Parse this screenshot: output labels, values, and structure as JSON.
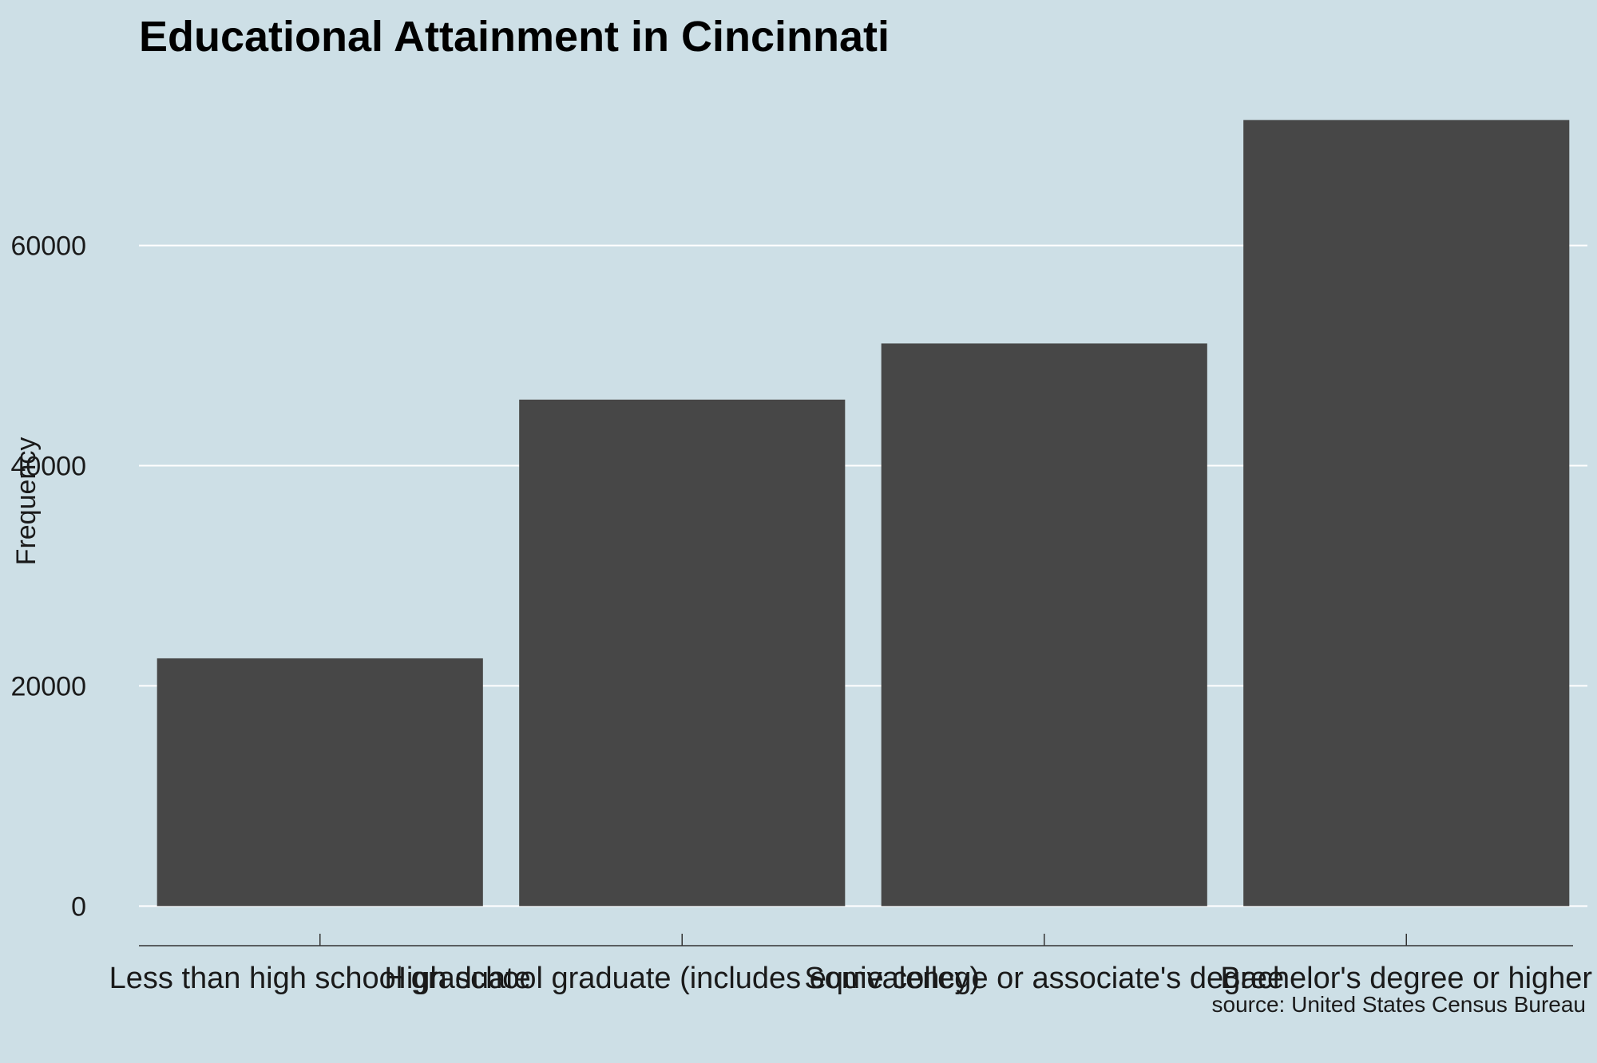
{
  "chart_data": {
    "type": "bar",
    "title": "Educational Attainment in Cincinnati",
    "xlabel": "",
    "ylabel": "Frequency",
    "caption": "source: United States Census Bureau",
    "categories": [
      "Less than high school graduate",
      "High school graduate (includes equivalency)",
      "Some college or associate's degree",
      "Bachelor's degree or higher"
    ],
    "values": [
      22500,
      46000,
      51100,
      71400
    ],
    "ylim": [
      -3600,
      76500
    ],
    "yticks": [
      0,
      20000,
      40000,
      60000
    ],
    "ytick_labels": [
      "0",
      "20000",
      "40000",
      "60000"
    ],
    "grid": "horizontal",
    "legend": "none",
    "colors": {
      "bar": "#474747",
      "background": "#cddfe6",
      "grid": "#ffffff",
      "axis": "#333333"
    }
  }
}
